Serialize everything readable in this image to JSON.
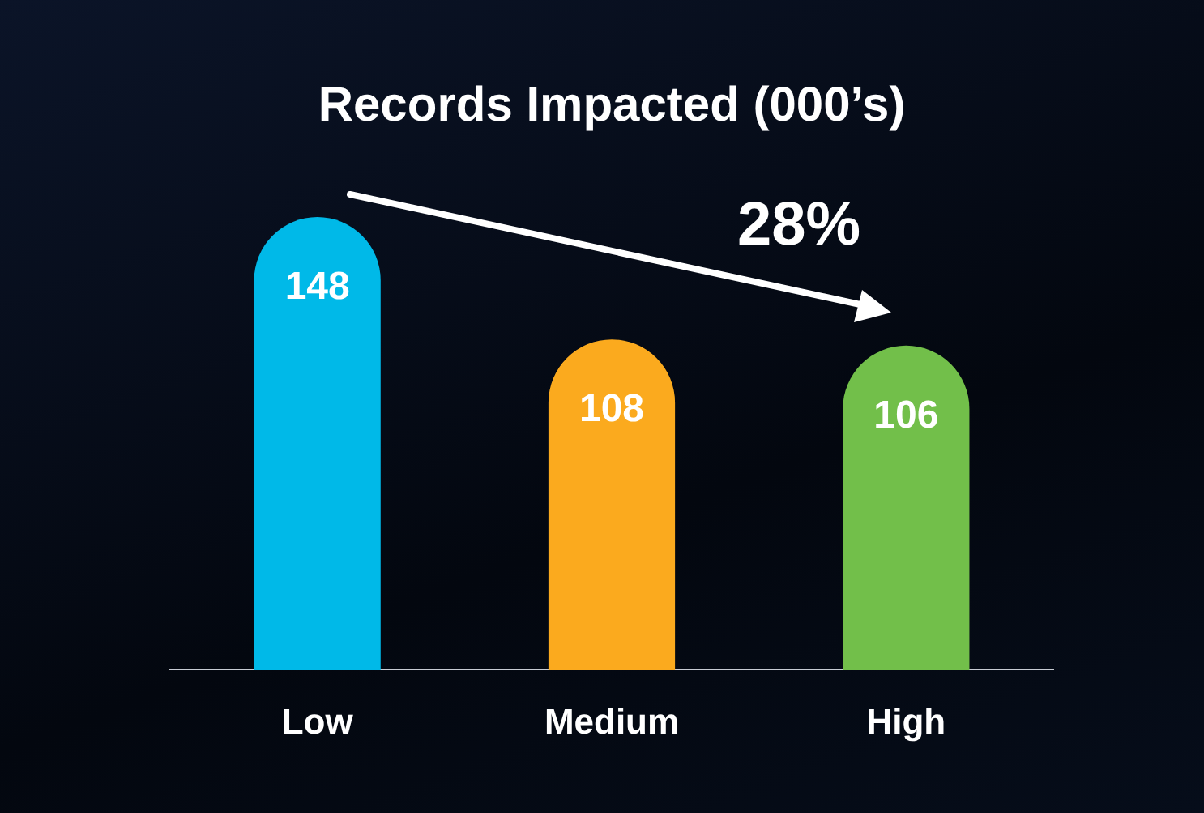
{
  "chart_data": {
    "type": "bar",
    "title": "Records Impacted (000’s)",
    "categories": [
      "Low",
      "Medium",
      "High"
    ],
    "values": [
      148,
      108,
      106
    ],
    "colors": [
      "#00b9e8",
      "#fbaa1e",
      "#72bf4a"
    ],
    "data_labels": true,
    "legend": false,
    "annotations": [
      "28%"
    ]
  }
}
